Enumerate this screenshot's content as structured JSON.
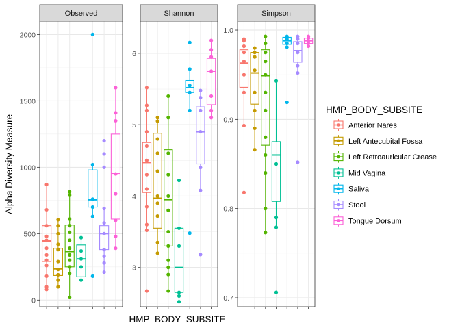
{
  "chart_data": {
    "type": "box",
    "ylabel": "Alpha Diversity Measure",
    "xlabel": "HMP_BODY_SUBSITE",
    "legend": {
      "title": "HMP_BODY_SUBSITE",
      "placement": "right"
    },
    "categories": [
      "Anterior Nares",
      "Left Antecubital Fossa",
      "Left Retroauricular Crease",
      "Mid Vagina",
      "Saliva",
      "Stool",
      "Tongue Dorsum"
    ],
    "colors": [
      "#F8766D",
      "#C49A00",
      "#53B400",
      "#00C094",
      "#00B6EB",
      "#A58AFF",
      "#FB61D7"
    ],
    "grid": true,
    "panels": [
      {
        "title": "Observed",
        "ylim": [
          -50,
          2100
        ],
        "ticks": [
          0,
          500,
          1000,
          1500,
          2000
        ],
        "tick_labels": [
          "0",
          "500",
          "1000",
          "1500",
          "2000"
        ],
        "boxes": [
          {
            "min": 80,
            "q1": 290,
            "median": 445,
            "q3": 560,
            "max": 870
          },
          {
            "min": 100,
            "q1": 185,
            "median": 235,
            "q3": 390,
            "max": 605
          },
          {
            "min": 20,
            "q1": 250,
            "median": 365,
            "q3": 565,
            "max": 815
          },
          {
            "min": 150,
            "q1": 175,
            "median": 310,
            "q3": 415,
            "max": 470
          },
          {
            "min": 630,
            "q1": 700,
            "median": 755,
            "q3": 980,
            "max": 1020
          },
          {
            "min": 210,
            "q1": 380,
            "median": 500,
            "q3": 560,
            "max": 690
          },
          {
            "min": 390,
            "q1": 610,
            "median": 955,
            "q3": 1250,
            "max": 1600
          }
        ],
        "points": [
          [
            80,
            100,
            180,
            260,
            300,
            340,
            390,
            450,
            480,
            560,
            680,
            870
          ],
          [
            100,
            150,
            190,
            230,
            290,
            380,
            420,
            500,
            560,
            605
          ],
          [
            20,
            200,
            250,
            300,
            340,
            390,
            450,
            510,
            560,
            610,
            790,
            815
          ],
          [
            150,
            250,
            310,
            370,
            470
          ],
          [
            180,
            630,
            700,
            760,
            1020,
            2000
          ],
          [
            210,
            280,
            330,
            380,
            500,
            580,
            690,
            1000,
            1100,
            1200
          ],
          [
            390,
            480,
            600,
            800,
            950,
            1350,
            1410,
            1600
          ]
        ]
      },
      {
        "title": "Shannon",
        "ylim": [
          2.45,
          6.45
        ],
        "ticks": [
          3,
          4,
          5,
          6
        ],
        "tick_labels": [
          "3",
          "4",
          "5",
          "6"
        ],
        "boxes": [
          {
            "min": 3.52,
            "q1": 4.05,
            "median": 4.47,
            "q3": 4.75,
            "max": 5.52
          },
          {
            "min": 3.2,
            "q1": 3.55,
            "median": 3.97,
            "q3": 4.88,
            "max": 5.1
          },
          {
            "min": 2.67,
            "q1": 3.3,
            "median": 3.95,
            "q3": 4.65,
            "max": 5.4
          },
          {
            "min": 2.52,
            "q1": 2.65,
            "median": 3.0,
            "q3": 3.55,
            "max": 4.22
          },
          {
            "min": 5.2,
            "q1": 5.45,
            "median": 5.52,
            "q3": 5.62,
            "max": 5.78
          },
          {
            "min": 4.08,
            "q1": 4.45,
            "median": 4.9,
            "q3": 5.25,
            "max": 5.5
          },
          {
            "min": 5.1,
            "q1": 5.28,
            "median": 5.75,
            "q3": 5.93,
            "max": 6.18
          }
        ],
        "points": [
          [
            2.67,
            3.52,
            3.6,
            3.85,
            4.1,
            4.3,
            4.5,
            4.7,
            4.9,
            5.2,
            5.27,
            5.52
          ],
          [
            3.2,
            3.35,
            3.72,
            3.9,
            4.0,
            4.35,
            4.6,
            4.8,
            5.05,
            5.1
          ],
          [
            2.67,
            2.9,
            3.0,
            3.1,
            3.3,
            3.5,
            3.8,
            4.0,
            4.3,
            4.6,
            5.1,
            5.4
          ],
          [
            2.52,
            2.6,
            2.65,
            3.3,
            3.55,
            4.22
          ],
          [
            3.48,
            5.2,
            5.45,
            5.55,
            5.78,
            6.15
          ],
          [
            3.18,
            4.08,
            4.4,
            4.9,
            5.2,
            5.38,
            5.48
          ],
          [
            5.1,
            5.2,
            5.4,
            5.75,
            5.95,
            6.05,
            6.18
          ]
        ]
      },
      {
        "title": "Simpson",
        "ylim": [
          0.69,
          1.01
        ],
        "ticks": [
          0.7,
          0.8,
          0.9,
          1.0
        ],
        "tick_labels": [
          "0.7",
          "0.8",
          "0.9",
          "1.0"
        ],
        "boxes": [
          {
            "min": 0.893,
            "q1": 0.936,
            "median": 0.963,
            "q3": 0.978,
            "max": 0.99
          },
          {
            "min": 0.866,
            "q1": 0.917,
            "median": 0.952,
            "q3": 0.975,
            "max": 0.98
          },
          {
            "min": 0.773,
            "q1": 0.871,
            "median": 0.949,
            "q3": 0.978,
            "max": 0.993
          },
          {
            "min": 0.779,
            "q1": 0.808,
            "median": 0.86,
            "q3": 0.875,
            "max": 0.943
          },
          {
            "min": 0.981,
            "q1": 0.984,
            "median": 0.988,
            "q3": 0.992,
            "max": 0.993
          },
          {
            "min": 0.952,
            "q1": 0.964,
            "median": 0.977,
            "q3": 0.987,
            "max": 0.993
          },
          {
            "min": 0.982,
            "q1": 0.985,
            "median": 0.988,
            "q3": 0.991,
            "max": 0.993
          }
        ],
        "points": [
          [
            0.818,
            0.893,
            0.93,
            0.95,
            0.965,
            0.975,
            0.982,
            0.988,
            0.99
          ],
          [
            0.866,
            0.89,
            0.91,
            0.93,
            0.955,
            0.97,
            0.975,
            0.98
          ],
          [
            0.773,
            0.8,
            0.84,
            0.86,
            0.88,
            0.91,
            0.93,
            0.95,
            0.965,
            0.975,
            0.985,
            0.993
          ],
          [
            0.706,
            0.779,
            0.79,
            0.85,
            0.943
          ],
          [
            0.919,
            0.981,
            0.985,
            0.99,
            0.993
          ],
          [
            0.852,
            0.952,
            0.96,
            0.975,
            0.985,
            0.99,
            0.993
          ],
          [
            0.982,
            0.985,
            0.988,
            0.991,
            0.993
          ]
        ]
      }
    ]
  }
}
